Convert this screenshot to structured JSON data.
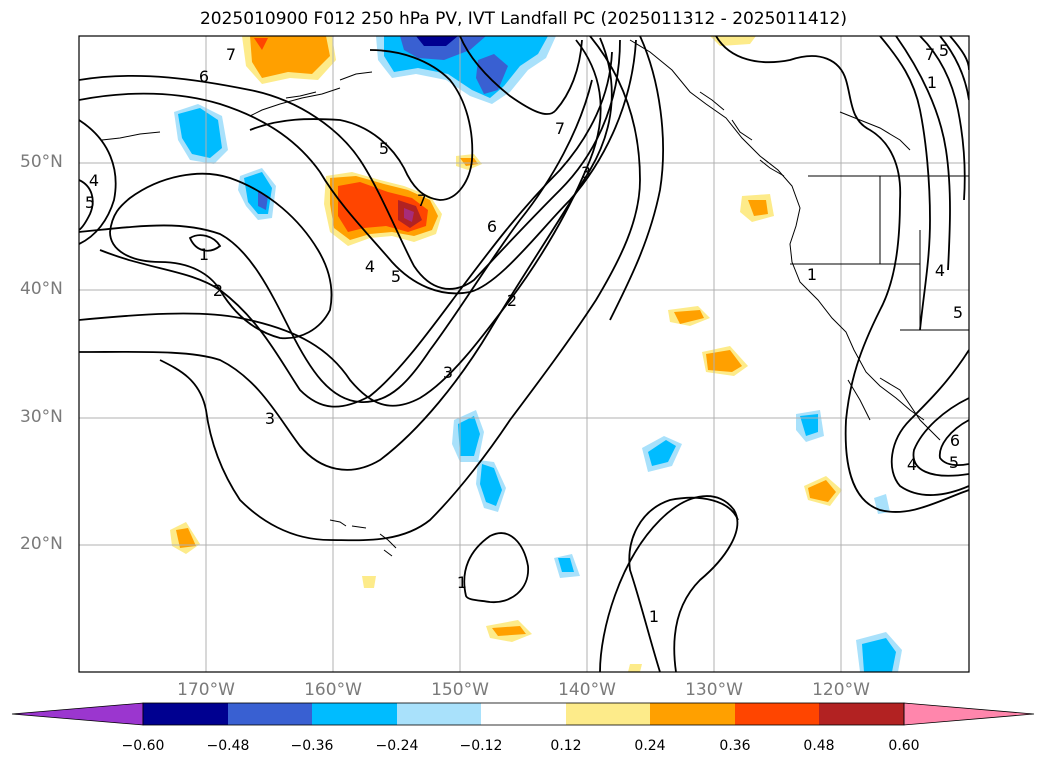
{
  "title": "2025010900 F012 250 hPa PV, IVT Landfall PC (2025011312 - 2025011412)",
  "map": {
    "lat_labels": [
      "50°N",
      "40°N",
      "30°N",
      "20°N"
    ],
    "lon_labels": [
      "170°W",
      "160°W",
      "150°W",
      "140°W",
      "130°W",
      "120°W"
    ],
    "contour_labels": [
      "7",
      "6",
      "5",
      "4",
      "5",
      "7",
      "7",
      "3",
      "6",
      "5",
      "4",
      "3",
      "1",
      "2",
      "3",
      "2",
      "1",
      "7",
      "5",
      "1",
      "4",
      "5",
      "4",
      "6",
      "5",
      "1",
      "1"
    ],
    "colors": {
      "grid": "#b0b0b0",
      "contour": "#000000",
      "coast": "#000000"
    }
  },
  "colorbar": {
    "ticks": [
      "−0.60",
      "−0.48",
      "−0.36",
      "−0.24",
      "−0.12",
      "0.12",
      "0.24",
      "0.36",
      "0.48",
      "0.60"
    ],
    "colors": [
      "#9b36cf",
      "#000090",
      "#3960d2",
      "#00bcff",
      "#a9e1fb",
      "#ffffff",
      "#fdeb8a",
      "#ffa000",
      "#ff4500",
      "#b22222",
      "#ff86ac"
    ]
  }
}
